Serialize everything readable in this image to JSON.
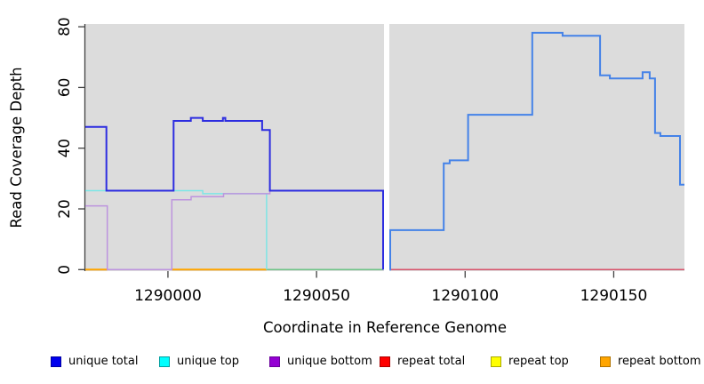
{
  "chart_data": {
    "type": "line",
    "title": "",
    "xlabel": "Coordinate in Reference Genome",
    "ylabel": "Read Coverage Depth",
    "x_ticks": [
      1290000,
      1290050,
      1290100,
      1290150
    ],
    "y_ticks": [
      0,
      20,
      40,
      60,
      80
    ],
    "xlim": [
      1289972.2,
      1290173.8
    ],
    "ylim": [
      0,
      80
    ],
    "plot_bg": "#dcdcdc",
    "grid": false,
    "gap": {
      "x0": 1290072.7,
      "x1": 1290074.5
    },
    "series": [
      {
        "name": "repeat total baseline (left)",
        "color": "#d6608f",
        "width": 1.5,
        "steps": [
          [
            1289972.2,
            0
          ]
        ],
        "end": 1290072.4
      },
      {
        "name": "baseline green segment",
        "color": "#6ec487",
        "width": 1.5,
        "steps": [
          [
            1290033.2,
            0
          ]
        ],
        "end": 1290072.4
      },
      {
        "name": "repeat bottom segment 1",
        "color": "#ffa500",
        "width": 2,
        "steps": [
          [
            1289972.2,
            0
          ]
        ],
        "end": 1289979.6
      },
      {
        "name": "repeat bottom segment 2",
        "color": "#ffa500",
        "width": 2,
        "steps": [
          [
            1290001.3,
            0
          ]
        ],
        "end": 1290033.2
      },
      {
        "name": "unique top",
        "color": "#7de6e6",
        "width": 1.5,
        "steps": [
          [
            1289972.2,
            26
          ],
          [
            1290011.7,
            25
          ],
          [
            1290033.2,
            0
          ]
        ],
        "end": 1290033.2
      },
      {
        "name": "unique bottom",
        "color": "#bd93de",
        "width": 1.5,
        "steps": [
          [
            1289972.2,
            21
          ],
          [
            1289979.6,
            0
          ],
          [
            1290001.3,
            23
          ],
          [
            1290007.8,
            24
          ],
          [
            1290018.7,
            25
          ],
          [
            1290034.3,
            26
          ],
          [
            1290072.4,
            0
          ]
        ],
        "end": 1290072.4
      },
      {
        "name": "unique total",
        "color": "#2d2de0",
        "width": 2,
        "steps": [
          [
            1289972.2,
            47
          ],
          [
            1289979.3,
            26
          ],
          [
            1290001.9,
            49
          ],
          [
            1290007.7,
            50
          ],
          [
            1290011.7,
            49
          ],
          [
            1290018.5,
            50
          ],
          [
            1290019.3,
            49
          ],
          [
            1290031.7,
            46
          ],
          [
            1290034.3,
            26
          ],
          [
            1290072.4,
            0
          ]
        ],
        "end": 1290072.4
      },
      {
        "name": "repeat total baseline (right)",
        "color": "#d9536b",
        "width": 1.5,
        "steps": [
          [
            1290074.6,
            0
          ]
        ],
        "end": 1290173.8
      },
      {
        "name": "total coverage (right block)",
        "color": "#4482e8",
        "width": 2,
        "steps": [
          [
            1290074.6,
            0
          ],
          [
            1290074.8,
            13
          ],
          [
            1290092.8,
            35
          ],
          [
            1290094.8,
            36
          ],
          [
            1290101.0,
            51
          ],
          [
            1290122.6,
            78
          ],
          [
            1290132.8,
            77
          ],
          [
            1290145.4,
            64
          ],
          [
            1290148.7,
            63
          ],
          [
            1290159.7,
            65
          ],
          [
            1290162.1,
            63
          ],
          [
            1290163.9,
            45
          ],
          [
            1290165.7,
            44
          ],
          [
            1290172.3,
            28
          ]
        ],
        "end": 1290173.8
      }
    ]
  },
  "legend": {
    "items": [
      {
        "label": "unique total",
        "fill": "#0000ee",
        "border": "#0000a0"
      },
      {
        "label": "unique top",
        "fill": "#00ffff",
        "border": "#009f9f"
      },
      {
        "label": "unique bottom",
        "fill": "#9400d3",
        "border": "#69009a"
      },
      {
        "label": "repeat total",
        "fill": "#ff0000",
        "border": "#ab0000"
      },
      {
        "label": "repeat top",
        "fill": "#ffff00",
        "border": "#aaaa00"
      },
      {
        "label": "repeat bottom",
        "fill": "#ffa500",
        "border": "#b07300"
      }
    ]
  }
}
